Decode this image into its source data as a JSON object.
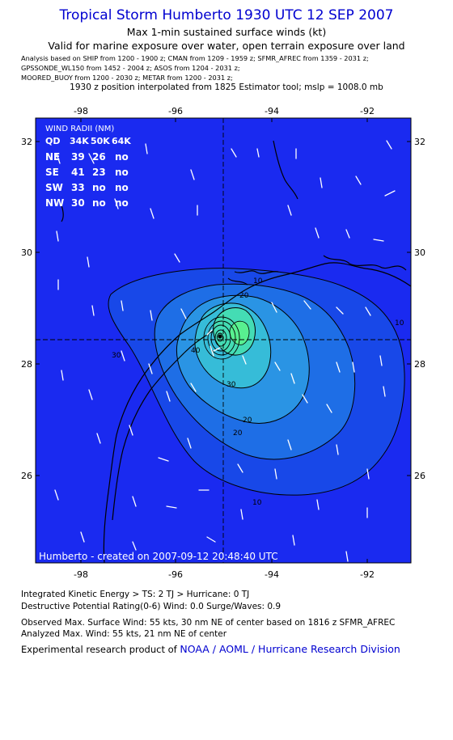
{
  "header": {
    "title": "Tropical Storm Humberto 1930 UTC 12 SEP 2007",
    "subtitle1": "Max 1-min sustained surface winds (kt)",
    "subtitle2": "Valid for marine exposure over water, open terrain exposure over land",
    "sources": [
      "Analysis based on  SHIP from 1200 - 1900 z;  CMAN from 1209 - 1959 z;  SFMR_AFREC from 1359 - 2031 z;",
      "GPSSONDE_WL150 from 1452 - 2004 z;  ASOS from 1204 - 2031 z;",
      "MOORED_BUOY from 1200 - 2030 z;  METAR from 1200 - 2031 z;"
    ],
    "position_line": "1930 z position interpolated from 1825 Estimator tool; mslp = 1008.0 mb"
  },
  "map": {
    "x_ticks": [
      "-98",
      "-96",
      "-94",
      "-92"
    ],
    "y_ticks": [
      "32",
      "30",
      "28",
      "26"
    ],
    "lon_range": [
      -99.0,
      -90.8
    ],
    "lat_range": [
      24.4,
      32.5
    ],
    "center": {
      "lon": -95.05,
      "lat": 28.45
    },
    "contour_labels": [
      "10",
      "20",
      "30",
      "40",
      "20",
      "20",
      "30",
      "10",
      "10"
    ],
    "wind_radii": {
      "title": "WIND RADII (NM)",
      "header": [
        "QD",
        "34K",
        "50K",
        "64K"
      ],
      "rows": [
        [
          "NE",
          "39",
          "26",
          "no"
        ],
        [
          "SE",
          "41",
          "23",
          "no"
        ],
        [
          "SW",
          "33",
          "no",
          "no"
        ],
        [
          "NW",
          "30",
          "no",
          "no"
        ]
      ]
    },
    "created": "Humberto - created on 2007-09-12 20:48:40 UTC",
    "colors": {
      "ocean": "#1a2af0",
      "c10": "#1848e8",
      "c20": "#1e6ee6",
      "c30": "#2a94e4",
      "c40": "#36bcd8",
      "c50": "#44dcb4",
      "c55": "#58f090"
    }
  },
  "footer": {
    "ike": "Integrated Kinetic Energy > TS: 2 TJ   > Hurricane: 0 TJ",
    "dpr": "Destructive Potential Rating(0-6)   Wind: 0.0 Surge/Waves: 0.9",
    "observed": "Observed Max. Surface Wind: 55 kts, 30 nm NE of center based on 1816 z SFMR_AFREC",
    "analyzed": "Analyzed Max. Wind: 55 kts, 21 nm NE of center",
    "credit_prefix": "Experimental research product of ",
    "credit_org": "NOAA / AOML / Hurricane Research Division"
  }
}
